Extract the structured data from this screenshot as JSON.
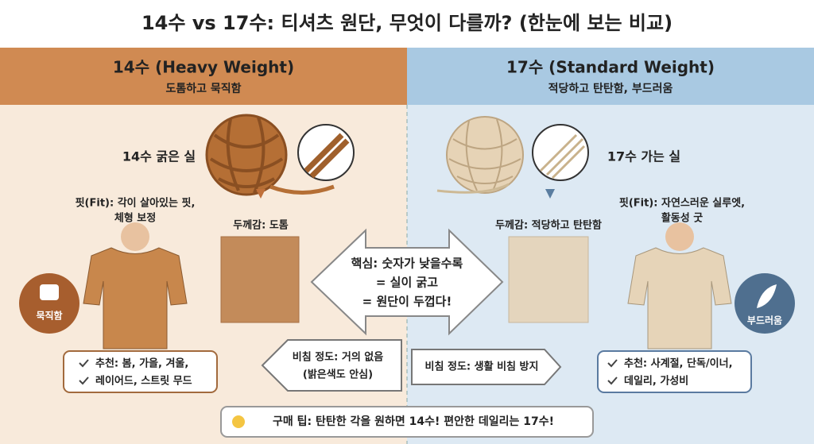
{
  "title": "14수 vs 17수: 티셔츠 원단, 무엇이 다를까? (한눈에 보는 비교)",
  "left": {
    "header": "14수 (Heavy Weight)",
    "subtitle": "도톰하고 묵직함",
    "yarn_label": "14수 굵은 실",
    "thickness": "두께감: 도톰",
    "fit": [
      "핏(Fit): 각이 살아있는 핏,",
      "체형 보정"
    ],
    "badge": "묵직함",
    "recommend": [
      "추천: 봄, 가을, 겨울,",
      "레이어드, 스트릿 무드"
    ],
    "sheer": [
      "비침 정도: 거의 없음",
      "(밝은색도 안심)"
    ]
  },
  "right": {
    "header": "17수 (Standard Weight)",
    "subtitle": "적당하고 탄탄함, 부드러움",
    "yarn_label": "17수 가는 실",
    "thickness": "두께감: 적당하고 탄탄함",
    "fit": [
      "핏(Fit): 자연스러운 실루엣,",
      "활동성 굿"
    ],
    "badge": "부드러움",
    "recommend": [
      "추천: 사계절, 단독/이너,",
      "데일리, 가성비"
    ],
    "sheer": [
      "비침 정도: 생활 비침 방지"
    ]
  },
  "center": [
    "핵심: 숫자가 낮을수록",
    "= 실이 굵고",
    "= 원단이 두껍다!"
  ],
  "tip": "구매 팁: 탄탄한 각을 원하면 14수! 편안한 데일리는 17수!"
}
